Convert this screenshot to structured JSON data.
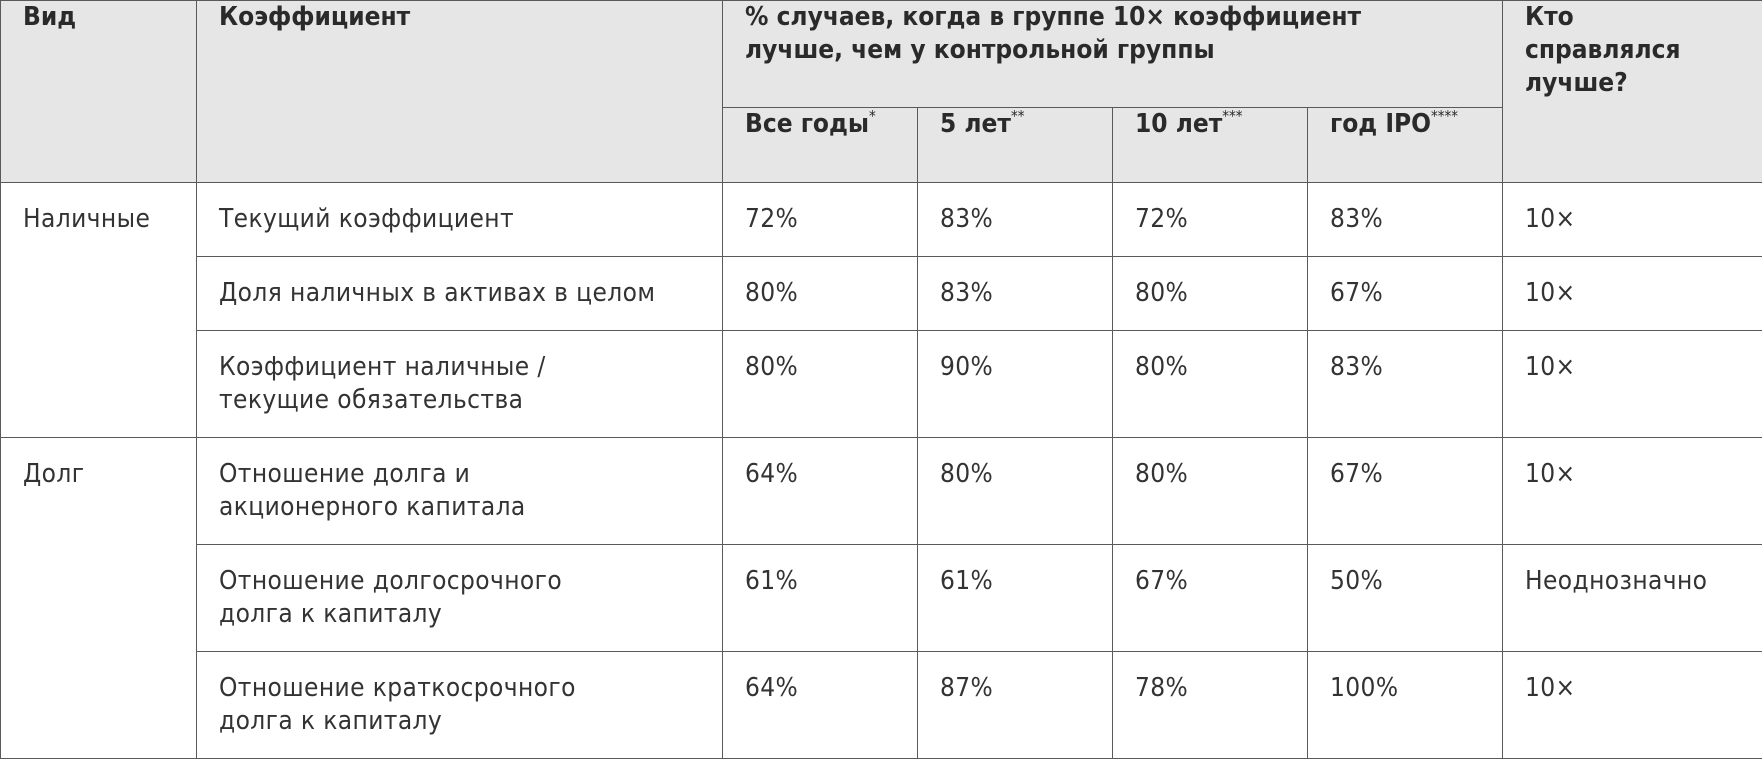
{
  "headers": {
    "type": "Вид",
    "ratio": "Коэффициент",
    "percent_group": "% случаев, когда в группе 10× коэффициент лучше, чем у контрольной группы",
    "winner": "Кто справлялся лучше?",
    "periods": [
      {
        "label": "Все годы",
        "mark": "*"
      },
      {
        "label": "5 лет",
        "mark": "**"
      },
      {
        "label": "10 лет",
        "mark": "***"
      },
      {
        "label": "год IPO",
        "mark": "****"
      }
    ]
  },
  "groups": [
    {
      "type": "Наличные",
      "rows": [
        {
          "ratio": "Текущий коэффициент",
          "all": "72%",
          "y5": "83%",
          "y10": "72%",
          "ipo": "83%",
          "winner": "10×"
        },
        {
          "ratio": "Доля наличных в активах в целом",
          "all": "80%",
          "y5": "83%",
          "y10": "80%",
          "ipo": "67%",
          "winner": "10×"
        },
        {
          "ratio": "Коэффициент наличные / текущие обязательства",
          "all": "80%",
          "y5": "90%",
          "y10": "80%",
          "ipo": "83%",
          "winner": "10×"
        }
      ]
    },
    {
      "type": "Долг",
      "rows": [
        {
          "ratio": "Отношение долга и акционерного капитала",
          "all": "64%",
          "y5": "80%",
          "y10": "80%",
          "ipo": "67%",
          "winner": "10×"
        },
        {
          "ratio": "Отношение долгосрочного долга к капиталу",
          "all": "61%",
          "y5": "61%",
          "y10": "67%",
          "ipo": "50%",
          "winner": "Неоднозначно"
        },
        {
          "ratio": "Отношение краткосрочного долга к капиталу",
          "all": "64%",
          "y5": "87%",
          "y10": "78%",
          "ipo": "100%",
          "winner": "10×"
        }
      ]
    }
  ]
}
